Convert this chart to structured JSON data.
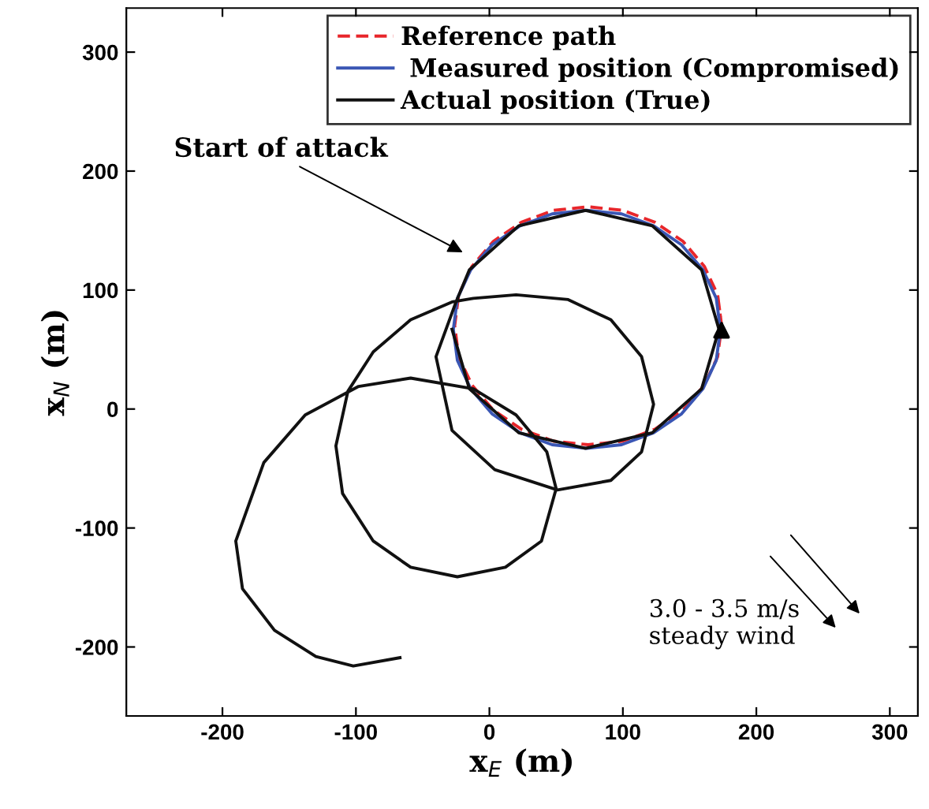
{
  "chart_data": {
    "type": "line",
    "xlabel": "x$_{E}$ (m)",
    "ylabel": "x$_{N}$ (m)",
    "xlim": [
      -272,
      321
    ],
    "ylim": [
      -258,
      337
    ],
    "xticks": [
      -200,
      -100,
      0,
      100,
      200,
      300
    ],
    "yticks": [
      -200,
      -100,
      0,
      100,
      200,
      300
    ],
    "grid": false,
    "legend": "top right",
    "marker": "none",
    "series": [
      {
        "name": "Reference path",
        "color": "#e8262b",
        "line_style": "dashed",
        "x": [
          174,
          171,
          161,
          145,
          124,
          100,
          74,
          48,
          24,
          3,
          -13,
          -23,
          -26,
          -23,
          -13,
          3,
          24,
          48,
          74,
          100,
          124,
          145,
          161,
          171,
          174,
          171
        ],
        "values": [
          70,
          96,
          120,
          141,
          157,
          167,
          170,
          167,
          157,
          141,
          120,
          96,
          70,
          44,
          20,
          -1,
          -17,
          -27,
          -30,
          -27,
          -17,
          -1,
          20,
          44,
          70,
          96
        ]
      },
      {
        "name": " Measured position (Compromised)",
        "color": "#3a56b4",
        "line_style": "solid",
        "x": [
          173,
          170,
          160,
          144,
          123,
          99,
          73,
          47,
          23,
          2,
          -14,
          -24,
          -27,
          -24,
          -14,
          2,
          23,
          47,
          73,
          99,
          123,
          144,
          160,
          170,
          173,
          170
        ],
        "values": [
          67,
          93,
          117,
          138,
          154,
          164,
          167,
          164,
          154,
          138,
          117,
          93,
          67,
          41,
          17,
          -4,
          -20,
          -30,
          -33,
          -30,
          -20,
          -4,
          17,
          41,
          67,
          93
        ]
      },
      {
        "name": "Actual position (True)",
        "color": "#111111",
        "line_style": "solid",
        "x": [
          -28,
          -15,
          22,
          72,
          122,
          159,
          172,
          159,
          122,
          72,
          22,
          -15,
          -25,
          -40,
          -28,
          4,
          51,
          91,
          114,
          123,
          114,
          91,
          59,
          20,
          -12,
          -28,
          -59,
          -87,
          -106,
          -115,
          -110,
          -87,
          -59,
          -24,
          12,
          39,
          50,
          43,
          20,
          -12,
          -59,
          -98,
          -138,
          -169,
          -190,
          -185,
          -161,
          -130,
          -102,
          -67
        ],
        "values": [
          67,
          17,
          -20,
          -33,
          -20,
          17,
          67,
          117,
          154,
          167,
          154,
          117,
          90,
          44,
          -18,
          -51,
          -68,
          -60,
          -36,
          4,
          44,
          75,
          92,
          96,
          93,
          90,
          75,
          48,
          15,
          -31,
          -71,
          -111,
          -133,
          -141,
          -133,
          -111,
          -67,
          -36,
          -5,
          17,
          26,
          19,
          -5,
          -45,
          -111,
          -151,
          -186,
          -208,
          -216,
          -209
        ]
      }
    ],
    "annotations": [
      "Start of attack",
      "3.0 - 3.5 m/s\nsteady wind"
    ]
  }
}
